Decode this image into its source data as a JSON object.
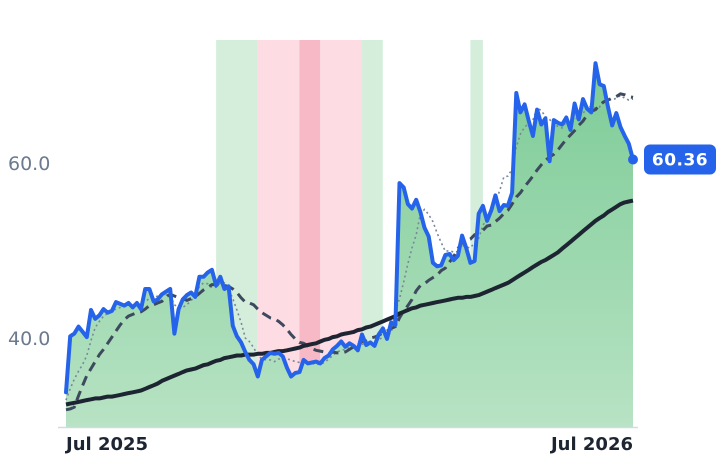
{
  "chart_data": {
    "type": "line",
    "x_ticks": [
      "Jul 2025",
      "Jul 2026"
    ],
    "y_ticks": [
      "40.0",
      "60.0"
    ],
    "ylim": [
      29.5,
      74
    ],
    "grid": false,
    "last_value_label": "60.36",
    "colors": {
      "price": "#2563eb",
      "long_ma": "#1e2532",
      "mid_ma": "#3d4a5e",
      "short_ma": "#7a8799",
      "fill_top": "#7ccb96",
      "fill_bottom": "#b8e3c4",
      "band_green": "#d5eedc",
      "band_pink": "#fddce3",
      "band_red": "#f7b9c6"
    },
    "x_index_range": [
      0,
      136
    ],
    "x_tick_index": [
      3,
      131
    ],
    "bands": [
      {
        "from": 36,
        "to": 46,
        "type": "green"
      },
      {
        "from": 46,
        "to": 56,
        "type": "pink"
      },
      {
        "from": 56,
        "to": 61,
        "type": "red"
      },
      {
        "from": 61,
        "to": 71,
        "type": "pink"
      },
      {
        "from": 71,
        "to": 76,
        "type": "green"
      },
      {
        "from": 97,
        "to": 100,
        "type": "green"
      }
    ],
    "series": [
      {
        "key": "price",
        "values": [
          33.8,
          40.2,
          40.5,
          41.3,
          40.7,
          40.1,
          43.2,
          42.2,
          42.6,
          43.3,
          42.9,
          43.1,
          44.1,
          43.9,
          43.7,
          44.0,
          43.5,
          44.0,
          43.3,
          45.6,
          45.6,
          44.2,
          44.4,
          45.0,
          45.3,
          45.6,
          40.5,
          43.3,
          44.4,
          44.9,
          45.2,
          44.7,
          47.0,
          47.0,
          47.5,
          47.8,
          46.0,
          47.0,
          45.6,
          45.9,
          41.4,
          40.2,
          39.5,
          38.4,
          37.5,
          37.0,
          35.6,
          37.5,
          37.9,
          38.3,
          38.2,
          38.3,
          37.9,
          36.6,
          35.6,
          36.0,
          36.1,
          37.5,
          37.1,
          37.2,
          37.3,
          37.1,
          37.7,
          38.0,
          38.7,
          39.1,
          39.6,
          39.0,
          39.4,
          39.1,
          38.6,
          40.4,
          39.2,
          39.5,
          39.1,
          40.4,
          41.1,
          39.9,
          41.8,
          41.5,
          57.7,
          57.2,
          55.3,
          54.8,
          55.8,
          54.4,
          52.6,
          51.6,
          48.6,
          48.2,
          48.3,
          49.5,
          49.6,
          48.9,
          49.4,
          51.7,
          50.3,
          48.6,
          48.8,
          54.2,
          55.1,
          53.4,
          54.6,
          56.3,
          54.5,
          55.2,
          55.1,
          56.6,
          68.0,
          65.8,
          66.7,
          64.8,
          63.1,
          66.1,
          64.4,
          65.1,
          60.2,
          64.9,
          64.6,
          64.4,
          65.2,
          63.8,
          66.8,
          65.0,
          67.3,
          66.2,
          65.8,
          71.4,
          69.0,
          68.8,
          66.4,
          64.3,
          65.7,
          64.1,
          63.1,
          62.2,
          60.4
        ]
      },
      {
        "key": "long_ma",
        "values": [
          32.4,
          32.5,
          32.6,
          32.7,
          32.8,
          32.9,
          33.0,
          33.1,
          33.1,
          33.2,
          33.3,
          33.3,
          33.4,
          33.5,
          33.6,
          33.7,
          33.8,
          33.9,
          34.0,
          34.2,
          34.4,
          34.6,
          34.8,
          35.1,
          35.3,
          35.5,
          35.7,
          35.9,
          36.1,
          36.3,
          36.4,
          36.5,
          36.7,
          36.9,
          37.0,
          37.2,
          37.4,
          37.5,
          37.7,
          37.8,
          37.9,
          38.0,
          38.0,
          38.1,
          38.1,
          38.1,
          38.2,
          38.2,
          38.3,
          38.3,
          38.4,
          38.5,
          38.5,
          38.6,
          38.7,
          38.8,
          38.9,
          39.1,
          39.2,
          39.3,
          39.4,
          39.6,
          39.8,
          39.9,
          40.1,
          40.2,
          40.4,
          40.5,
          40.6,
          40.7,
          40.9,
          41.0,
          41.2,
          41.3,
          41.5,
          41.7,
          41.9,
          42.1,
          42.3,
          42.5,
          42.8,
          43.0,
          43.2,
          43.4,
          43.5,
          43.7,
          43.8,
          43.9,
          44.0,
          44.1,
          44.2,
          44.3,
          44.4,
          44.5,
          44.6,
          44.6,
          44.7,
          44.7,
          44.8,
          44.9,
          45.1,
          45.3,
          45.5,
          45.7,
          45.9,
          46.1,
          46.3,
          46.6,
          46.9,
          47.2,
          47.5,
          47.8,
          48.1,
          48.4,
          48.7,
          48.9,
          49.2,
          49.5,
          49.8,
          50.2,
          50.6,
          51.0,
          51.4,
          51.8,
          52.2,
          52.6,
          53.0,
          53.4,
          53.7,
          54.0,
          54.4,
          54.7,
          55.0,
          55.3,
          55.5,
          55.6,
          55.7
        ]
      },
      {
        "key": "mid_ma",
        "values": [
          31.8,
          31.9,
          32.1,
          33.4,
          34.6,
          35.7,
          36.5,
          37.3,
          38.1,
          38.7,
          39.4,
          40.1,
          40.8,
          41.5,
          42.1,
          42.5,
          42.7,
          42.9,
          43.0,
          43.3,
          43.7,
          43.8,
          44.0,
          44.2,
          44.7,
          45.0,
          44.8,
          44.6,
          44.5,
          44.3,
          44.5,
          44.7,
          45.1,
          45.5,
          45.8,
          46.1,
          46.1,
          46.1,
          46.0,
          45.9,
          45.6,
          45.2,
          44.6,
          44.1,
          44.0,
          43.8,
          43.3,
          42.9,
          42.6,
          42.3,
          42.2,
          41.9,
          41.5,
          41.0,
          40.4,
          39.9,
          39.5,
          39.4,
          39.1,
          38.8,
          38.6,
          38.5,
          38.4,
          38.2,
          38.4,
          38.3,
          38.3,
          38.4,
          38.7,
          39.0,
          39.2,
          39.6,
          39.7,
          40.0,
          40.1,
          40.3,
          40.6,
          40.8,
          41.1,
          41.3,
          42.3,
          43.1,
          43.7,
          44.4,
          45.4,
          46.0,
          46.2,
          46.6,
          46.9,
          47.2,
          47.7,
          48.0,
          48.7,
          49.3,
          50.2,
          50.9,
          51.1,
          51.3,
          51.8,
          52.0,
          52.3,
          52.8,
          52.9,
          53.3,
          53.7,
          54.2,
          54.6,
          55.3,
          56.1,
          56.6,
          57.3,
          57.9,
          58.5,
          59.2,
          59.8,
          60.3,
          60.7,
          61.0,
          61.5,
          62.1,
          62.7,
          63.2,
          63.7,
          64.3,
          64.8,
          65.5,
          65.9,
          66.1,
          66.6,
          67.0,
          67.2,
          67.4,
          67.6,
          67.9,
          67.8,
          67.6,
          67.5
        ]
      },
      {
        "key": "short_ma",
        "values": [
          32.9,
          34.2,
          35.3,
          36.2,
          37.0,
          38.0,
          39.7,
          41.2,
          41.9,
          42.5,
          42.8,
          43.1,
          43.3,
          43.5,
          43.8,
          43.8,
          43.8,
          43.9,
          43.9,
          44.2,
          44.5,
          44.6,
          44.8,
          44.8,
          44.9,
          44.9,
          43.8,
          43.5,
          43.5,
          43.8,
          44.3,
          44.7,
          45.9,
          46.3,
          46.2,
          45.8,
          45.8,
          46.3,
          46.3,
          45.6,
          44.5,
          43.2,
          41.8,
          40.0,
          39.6,
          38.9,
          38.0,
          37.6,
          37.5,
          37.5,
          37.3,
          37.6,
          37.6,
          37.6,
          37.5,
          37.3,
          37.2,
          37.2,
          37.2,
          37.1,
          37.0,
          37.0,
          37.2,
          37.6,
          38.0,
          38.4,
          38.6,
          38.7,
          38.9,
          38.9,
          39.1,
          39.3,
          39.2,
          39.3,
          39.7,
          39.8,
          40.1,
          40.3,
          40.6,
          43.0,
          44.5,
          46.4,
          48.5,
          50.3,
          51.8,
          54.2,
          54.7,
          54.1,
          53.3,
          52.0,
          50.9,
          49.9,
          50.0,
          49.8,
          49.9,
          50.6,
          50.4,
          50.3,
          50.9,
          51.4,
          52.9,
          53.5,
          54.6,
          55.6,
          56.8,
          58.4,
          58.5,
          59.3,
          61.8,
          63.3,
          64.1,
          64.5,
          64.9,
          66.3,
          66.0,
          65.3,
          65.0,
          64.3,
          64.2,
          64.0,
          64.7,
          64.5,
          64.9,
          65.3,
          65.6,
          66.5,
          66.4,
          66.3,
          66.4,
          67.3,
          67.3,
          67.2,
          67.4,
          67.7,
          67.4,
          67.2,
          67.3
        ]
      }
    ]
  }
}
